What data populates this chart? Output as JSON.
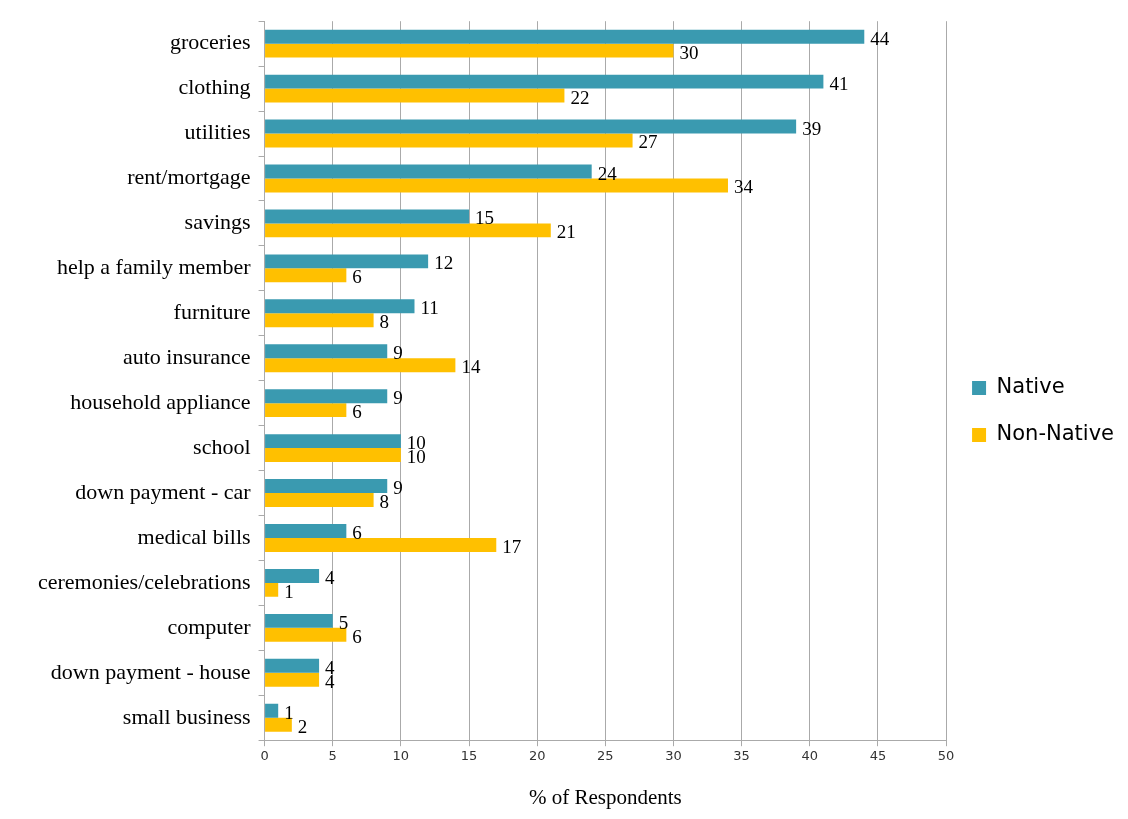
{
  "chart_data": {
    "type": "bar",
    "orientation": "horizontal",
    "xlabel": "% of Respondents",
    "categories": [
      "groceries",
      "clothing",
      "utilities",
      "rent/mortgage",
      "savings",
      "help a family member",
      "furniture",
      "auto insurance",
      "household appliance",
      "school",
      "down payment - car",
      "medical bills",
      "ceremonies/celebrations",
      "computer",
      "down payment - house",
      "small business"
    ],
    "series": [
      {
        "name": "Native",
        "color": "#3a9ab0",
        "values": [
          44,
          41,
          39,
          24,
          15,
          12,
          11,
          9,
          9,
          10,
          9,
          6,
          4,
          5,
          4,
          1
        ]
      },
      {
        "name": "Non-Native",
        "color": "#ffc000",
        "values": [
          30,
          22,
          27,
          34,
          21,
          6,
          8,
          14,
          6,
          10,
          8,
          17,
          1,
          6,
          4,
          2
        ]
      }
    ],
    "xlim": [
      0,
      50
    ],
    "xticks": [
      0,
      5,
      10,
      15,
      20,
      25,
      30,
      35,
      40,
      45,
      50
    ],
    "grid": "x",
    "legend": "right",
    "data_labels": true
  }
}
